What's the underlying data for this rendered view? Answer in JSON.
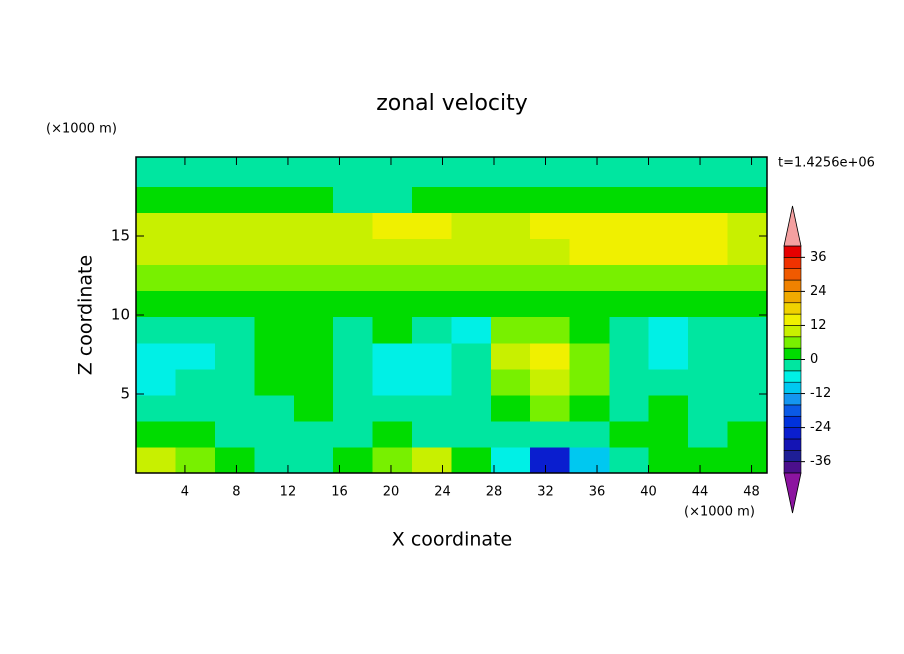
{
  "chart_data": {
    "type": "contour",
    "title": "zonal velocity",
    "x_label": "X coordinate",
    "y_label": "Z coordinate",
    "x_unit": "(×1000 m)",
    "y_unit": "(×1000 m)",
    "time_label": "t=1.4256e+06",
    "xlim": [
      0.2,
      49.2
    ],
    "ylim": [
      0,
      20
    ],
    "xticks": [
      4,
      8,
      12,
      16,
      20,
      24,
      28,
      32,
      36,
      40,
      44,
      48
    ],
    "yticks": [
      5,
      10,
      15
    ],
    "x": [
      1.7,
      4.8,
      7.9,
      10.9,
      14.0,
      17.0,
      20.1,
      23.2,
      26.2,
      29.3,
      32.3,
      35.4,
      38.5,
      41.5,
      44.6,
      47.7
    ],
    "y": [
      0.8,
      2.5,
      4.1,
      5.8,
      7.4,
      9.1,
      10.7,
      12.4,
      14.0,
      15.7,
      17.3,
      19.0
    ],
    "z": [
      [
        10,
        6,
        2,
        -2,
        -2,
        2,
        6,
        10,
        2,
        -6,
        -26,
        -10,
        -2,
        2,
        2,
        2
      ],
      [
        2,
        2,
        -2,
        -2,
        -2,
        -2,
        2,
        -2,
        -2,
        -2,
        -2,
        -2,
        2,
        2,
        -2,
        2
      ],
      [
        -2,
        -2,
        -2,
        -2,
        2,
        -2,
        -2,
        -2,
        -2,
        2,
        6,
        2,
        -2,
        2,
        -2,
        -2
      ],
      [
        -6,
        -2,
        -2,
        2,
        2,
        -2,
        -6,
        -6,
        -2,
        6,
        10,
        6,
        -2,
        -2,
        -2,
        -2
      ],
      [
        -6,
        -6,
        -2,
        2,
        2,
        -2,
        -6,
        -8,
        -2,
        10,
        14,
        6,
        -2,
        -6,
        -2,
        -2
      ],
      [
        -2,
        -2,
        -2,
        2,
        2,
        -2,
        2,
        -2,
        -6,
        6,
        6,
        2,
        -2,
        -6,
        -2,
        -2
      ],
      [
        2,
        2,
        2,
        2,
        2,
        2,
        2,
        2,
        2,
        2,
        2,
        2,
        2,
        2,
        2,
        2
      ],
      [
        6,
        6,
        6,
        6,
        6,
        6,
        6,
        6,
        6,
        6,
        6,
        6,
        6,
        6,
        6,
        6
      ],
      [
        10,
        10,
        10,
        10,
        10,
        10,
        10,
        10,
        10,
        10,
        10,
        12,
        14,
        14,
        12,
        10
      ],
      [
        10,
        10,
        8,
        10,
        10,
        10,
        12,
        12,
        10,
        10,
        12,
        14,
        14,
        12,
        12,
        10
      ],
      [
        2,
        2,
        2,
        2,
        2,
        -2,
        -2,
        2,
        2,
        2,
        2,
        2,
        2,
        2,
        2,
        2
      ],
      [
        -2,
        -4,
        -4,
        -4,
        -2,
        -2,
        -2,
        -4,
        -4,
        -4,
        -4,
        -4,
        -4,
        -4,
        -4,
        -2
      ]
    ],
    "levels": [
      -40,
      -36,
      -32,
      -28,
      -24,
      -20,
      -16,
      -12,
      -8,
      -4,
      0,
      4,
      8,
      12,
      16,
      20,
      24,
      28,
      32,
      36,
      40
    ],
    "colors": [
      "#4b0f8c",
      "#1e1e96",
      "#1414b4",
      "#0a1ecf",
      "#0032dc",
      "#0a5ae6",
      "#1496f0",
      "#00c8f0",
      "#00f0e6",
      "#00e6a0",
      "#00dc00",
      "#78f000",
      "#c8f000",
      "#f0f000",
      "#f0d200",
      "#f0aa00",
      "#f08200",
      "#f05a00",
      "#f03200",
      "#e60000"
    ],
    "under_color": "#8c14a0",
    "over_color": "#f4a0a0",
    "colorbar_ticks": [
      -36,
      -24,
      -12,
      0,
      12,
      24,
      36
    ]
  }
}
